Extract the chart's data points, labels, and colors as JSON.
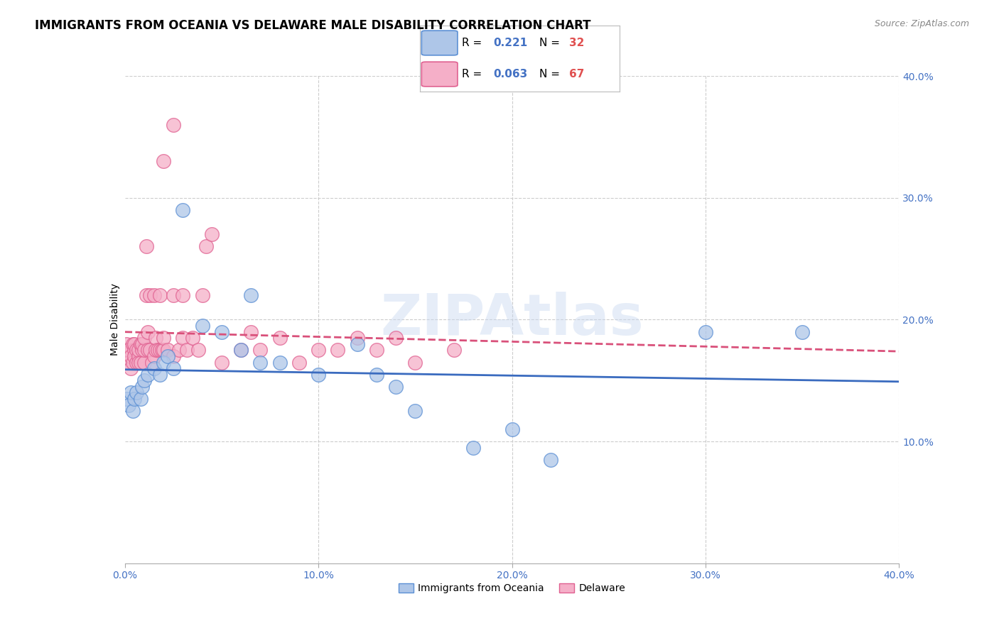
{
  "title": "IMMIGRANTS FROM OCEANIA VS DELAWARE MALE DISABILITY CORRELATION CHART",
  "source": "Source: ZipAtlas.com",
  "ylabel": "Male Disability",
  "watermark": "ZIPAtlas",
  "xlim": [
    0.0,
    0.4
  ],
  "ylim": [
    0.0,
    0.4
  ],
  "xtick_values": [
    0.0,
    0.1,
    0.2,
    0.3,
    0.4
  ],
  "ytick_values_right": [
    0.1,
    0.2,
    0.3,
    0.4
  ],
  "series_blue": {
    "label": "Immigrants from Oceania",
    "R": "0.221",
    "N": "32",
    "color": "#aec6e8",
    "edge_color": "#5b8fd4",
    "line_color": "#3a6bbf",
    "x": [
      0.001,
      0.002,
      0.003,
      0.004,
      0.005,
      0.006,
      0.008,
      0.009,
      0.01,
      0.012,
      0.015,
      0.018,
      0.02,
      0.022,
      0.025,
      0.03,
      0.04,
      0.05,
      0.06,
      0.065,
      0.07,
      0.08,
      0.1,
      0.12,
      0.13,
      0.14,
      0.15,
      0.18,
      0.2,
      0.22,
      0.3,
      0.35
    ],
    "y": [
      0.135,
      0.13,
      0.14,
      0.125,
      0.135,
      0.14,
      0.135,
      0.145,
      0.15,
      0.155,
      0.16,
      0.155,
      0.165,
      0.17,
      0.16,
      0.29,
      0.195,
      0.19,
      0.175,
      0.22,
      0.165,
      0.165,
      0.155,
      0.18,
      0.155,
      0.145,
      0.125,
      0.095,
      0.11,
      0.085,
      0.19,
      0.19
    ]
  },
  "series_pink": {
    "label": "Delaware",
    "R": "0.063",
    "N": "67",
    "color": "#f5afc8",
    "edge_color": "#e06090",
    "line_color": "#d9507a",
    "x": [
      0.001,
      0.001,
      0.002,
      0.002,
      0.003,
      0.003,
      0.004,
      0.004,
      0.005,
      0.005,
      0.005,
      0.006,
      0.006,
      0.007,
      0.007,
      0.007,
      0.008,
      0.008,
      0.009,
      0.009,
      0.01,
      0.01,
      0.01,
      0.011,
      0.011,
      0.012,
      0.012,
      0.013,
      0.013,
      0.014,
      0.015,
      0.015,
      0.016,
      0.016,
      0.017,
      0.018,
      0.018,
      0.019,
      0.02,
      0.02,
      0.022,
      0.025,
      0.025,
      0.028,
      0.03,
      0.03,
      0.032,
      0.035,
      0.038,
      0.04,
      0.042,
      0.045,
      0.05,
      0.06,
      0.065,
      0.07,
      0.08,
      0.09,
      0.1,
      0.11,
      0.12,
      0.13,
      0.14,
      0.15,
      0.17,
      0.02,
      0.025
    ],
    "y": [
      0.175,
      0.18,
      0.165,
      0.175,
      0.16,
      0.17,
      0.18,
      0.165,
      0.175,
      0.18,
      0.17,
      0.165,
      0.175,
      0.17,
      0.165,
      0.175,
      0.18,
      0.165,
      0.175,
      0.18,
      0.165,
      0.175,
      0.185,
      0.22,
      0.26,
      0.19,
      0.175,
      0.22,
      0.175,
      0.165,
      0.22,
      0.17,
      0.175,
      0.185,
      0.175,
      0.175,
      0.22,
      0.175,
      0.175,
      0.185,
      0.175,
      0.22,
      0.17,
      0.175,
      0.185,
      0.22,
      0.175,
      0.185,
      0.175,
      0.22,
      0.26,
      0.27,
      0.165,
      0.175,
      0.19,
      0.175,
      0.185,
      0.165,
      0.175,
      0.175,
      0.185,
      0.175,
      0.185,
      0.165,
      0.175,
      0.33,
      0.36
    ]
  },
  "grid_color": "#cccccc",
  "background_color": "#ffffff",
  "title_fontsize": 12,
  "axis_label_fontsize": 10,
  "tick_fontsize": 10,
  "legend_fontsize": 11,
  "r_color": "#4472c4",
  "n_color": "#e05050",
  "source_color": "#888888"
}
